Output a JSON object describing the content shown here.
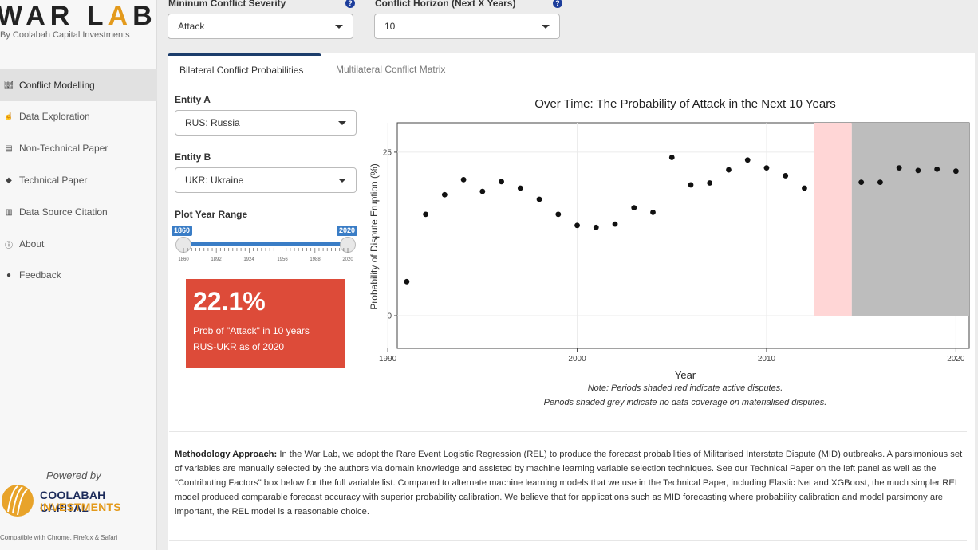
{
  "sidebar": {
    "logo_main": "WAR LAB",
    "logo_sub": "By Coolabah Capital Investments",
    "items": [
      {
        "label": "Conflict Modelling",
        "icon": "line-chart-icon",
        "active": true
      },
      {
        "label": "Data Exploration",
        "icon": "hand-pointer-icon",
        "active": false
      },
      {
        "label": "Non-Technical Paper",
        "icon": "book-icon",
        "active": false
      },
      {
        "label": "Technical Paper",
        "icon": "graduation-cap-icon",
        "active": false
      },
      {
        "label": "Data Source Citation",
        "icon": "database-icon",
        "active": false
      },
      {
        "label": "About",
        "icon": "info-icon",
        "active": false
      },
      {
        "label": "Feedback",
        "icon": "comment-icon",
        "active": false
      }
    ],
    "powered_by": "Powered by",
    "company_line1": "COOLABAH CAPITAL",
    "company_line2": "INVESTMENTS",
    "compat": "Compatible with Chrome, Firefox & Safari"
  },
  "controls": {
    "severity_label": "Mininum Conflict Severity",
    "severity_value": "Attack",
    "horizon_label": "Conflict Horizon (Next X Years)",
    "horizon_value": "10",
    "help_glyph": "?"
  },
  "tabs": [
    {
      "label": "Bilateral Conflict Probabilities",
      "active": true
    },
    {
      "label": "Multilateral Conflict Matrix",
      "active": false
    }
  ],
  "inputs": {
    "entity_a_label": "Entity A",
    "entity_a_value": "RUS: Russia",
    "entity_b_label": "Entity B",
    "entity_b_value": "UKR: Ukraine",
    "range_label": "Plot Year Range",
    "range_min": "1860",
    "range_max": "2020",
    "range_ticks": [
      "1860",
      "1892",
      "1924",
      "1956",
      "1988",
      "2020"
    ]
  },
  "value_box": {
    "value": "22.1%",
    "line1": "Prob of \"Attack\" in 10 years",
    "line2": "RUS-UKR as of 2020"
  },
  "chart_data": {
    "type": "scatter",
    "title": "Over Time: The Probability of Attack in the Next 10 Years",
    "xlabel": "Year",
    "ylabel": "Probability of Dispute Eruption (%)",
    "xlim": [
      1990.5,
      2020.7
    ],
    "ylim": [
      -5,
      29.5
    ],
    "x_ticks": [
      1990,
      2000,
      2010,
      2020
    ],
    "y_ticks": [
      0,
      25
    ],
    "grid": true,
    "shaded_regions": [
      {
        "from": 2012.5,
        "to": 2014.5,
        "color": "#ffd6d6",
        "meaning": "active disputes"
      },
      {
        "from": 2014.5,
        "to": 2020.7,
        "color": "#bdbdbd",
        "meaning": "no data coverage"
      }
    ],
    "x": [
      1991,
      1992,
      1993,
      1994,
      1995,
      1996,
      1997,
      1998,
      1999,
      2000,
      2001,
      2002,
      2003,
      2004,
      2005,
      2006,
      2007,
      2008,
      2009,
      2010,
      2011,
      2012,
      2015,
      2016,
      2017,
      2018,
      2019,
      2020
    ],
    "y": [
      5.2,
      15.5,
      18.5,
      20.8,
      19.0,
      20.5,
      19.5,
      17.8,
      15.5,
      13.8,
      13.5,
      14.0,
      16.5,
      15.8,
      24.2,
      20.0,
      20.3,
      22.3,
      23.8,
      22.6,
      21.4,
      19.5,
      20.4,
      20.4,
      22.6,
      22.2,
      22.4,
      22.1
    ],
    "note_line1": "Note: Periods shaded red indicate active disputes.",
    "note_line2": "Periods shaded grey indicate no data coverage on materialised disputes."
  },
  "methodology": {
    "heading": "Methodology Approach:",
    "body": " In the War Lab, we adopt the Rare Event Logistic Regression (REL) to produce the forecast probabilities of Militarised Interstate Dispute (MID) outbreaks. A parsimonious set of variables are manually selected by the authors via domain knowledge and assisted by machine learning variable selection techniques. See our Technical Paper on the left panel as well as the \"Contributing Factors\" box below for the full variable list. Compared to alternate machine learning models that we use in the Technical Paper, including Elastic Net and XGBoost, the much simpler REL model produced comparable forecast accuracy with superior probability calibration. We believe that for applications such as MID forecasting where probability calibration and model parsimony are important, the REL model is a reasonable choice."
  }
}
